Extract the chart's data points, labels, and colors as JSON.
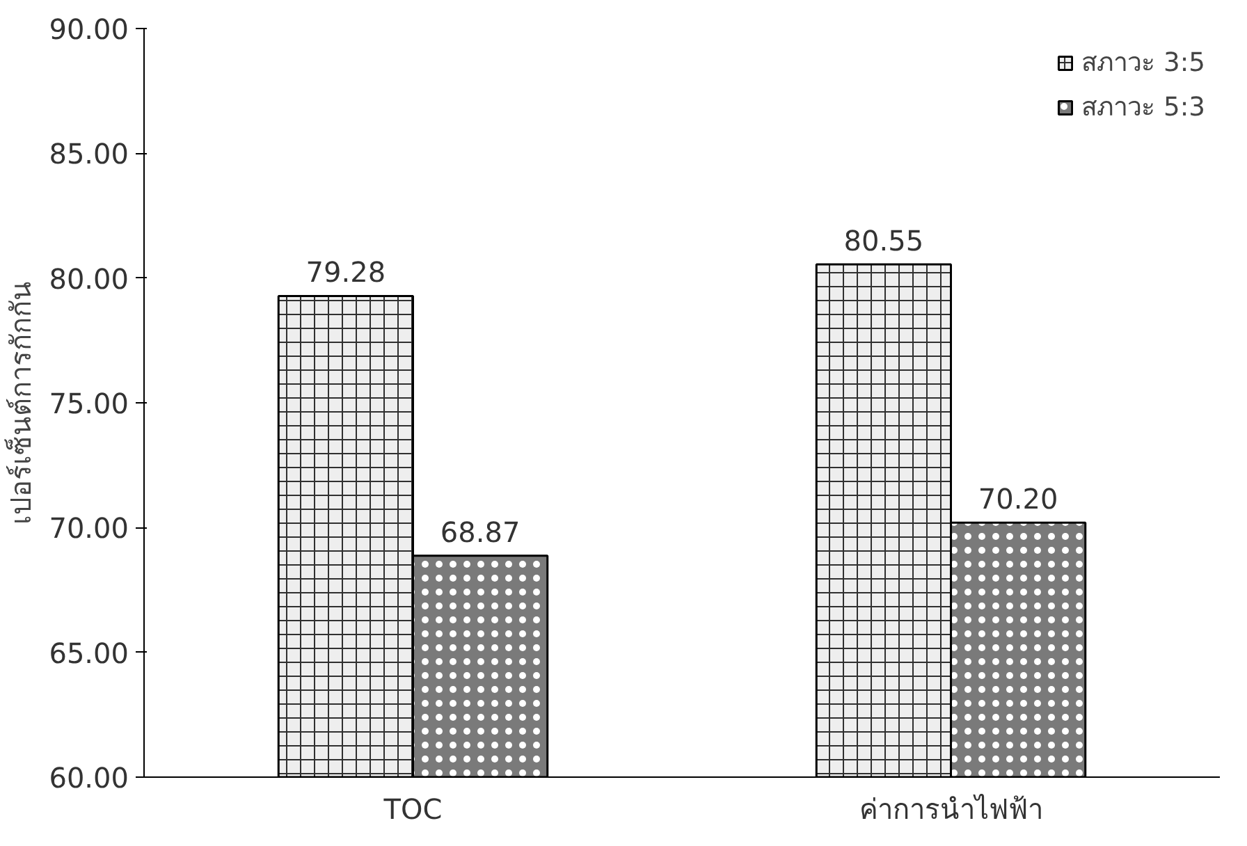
{
  "chart_data": {
    "type": "bar",
    "ylabel": "เปอร์เซ็นต์การกักกัน",
    "categories": [
      "TOC",
      "ค่าการนำไฟฟ้า"
    ],
    "series": [
      {
        "name": "สภาวะ 3:5",
        "color": "#eeeeee",
        "values": [
          79.28,
          80.55
        ],
        "value_labels": [
          "79.28",
          "80.55"
        ]
      },
      {
        "name": "สภาวะ 5:3",
        "color": "#7a7a7a",
        "values": [
          68.87,
          70.2
        ],
        "value_labels": [
          "68.87",
          "70.20"
        ]
      }
    ],
    "ylim": [
      60,
      90
    ],
    "yticks": [
      {
        "value": 60,
        "label": "60.00"
      },
      {
        "value": 65,
        "label": "65.00"
      },
      {
        "value": 70,
        "label": "70.00"
      },
      {
        "value": 75,
        "label": "75.00"
      },
      {
        "value": 80,
        "label": "80.00"
      },
      {
        "value": 85,
        "label": "85.00"
      },
      {
        "value": 90,
        "label": "90.00"
      }
    ],
    "legend": "top right",
    "grid": false
  }
}
